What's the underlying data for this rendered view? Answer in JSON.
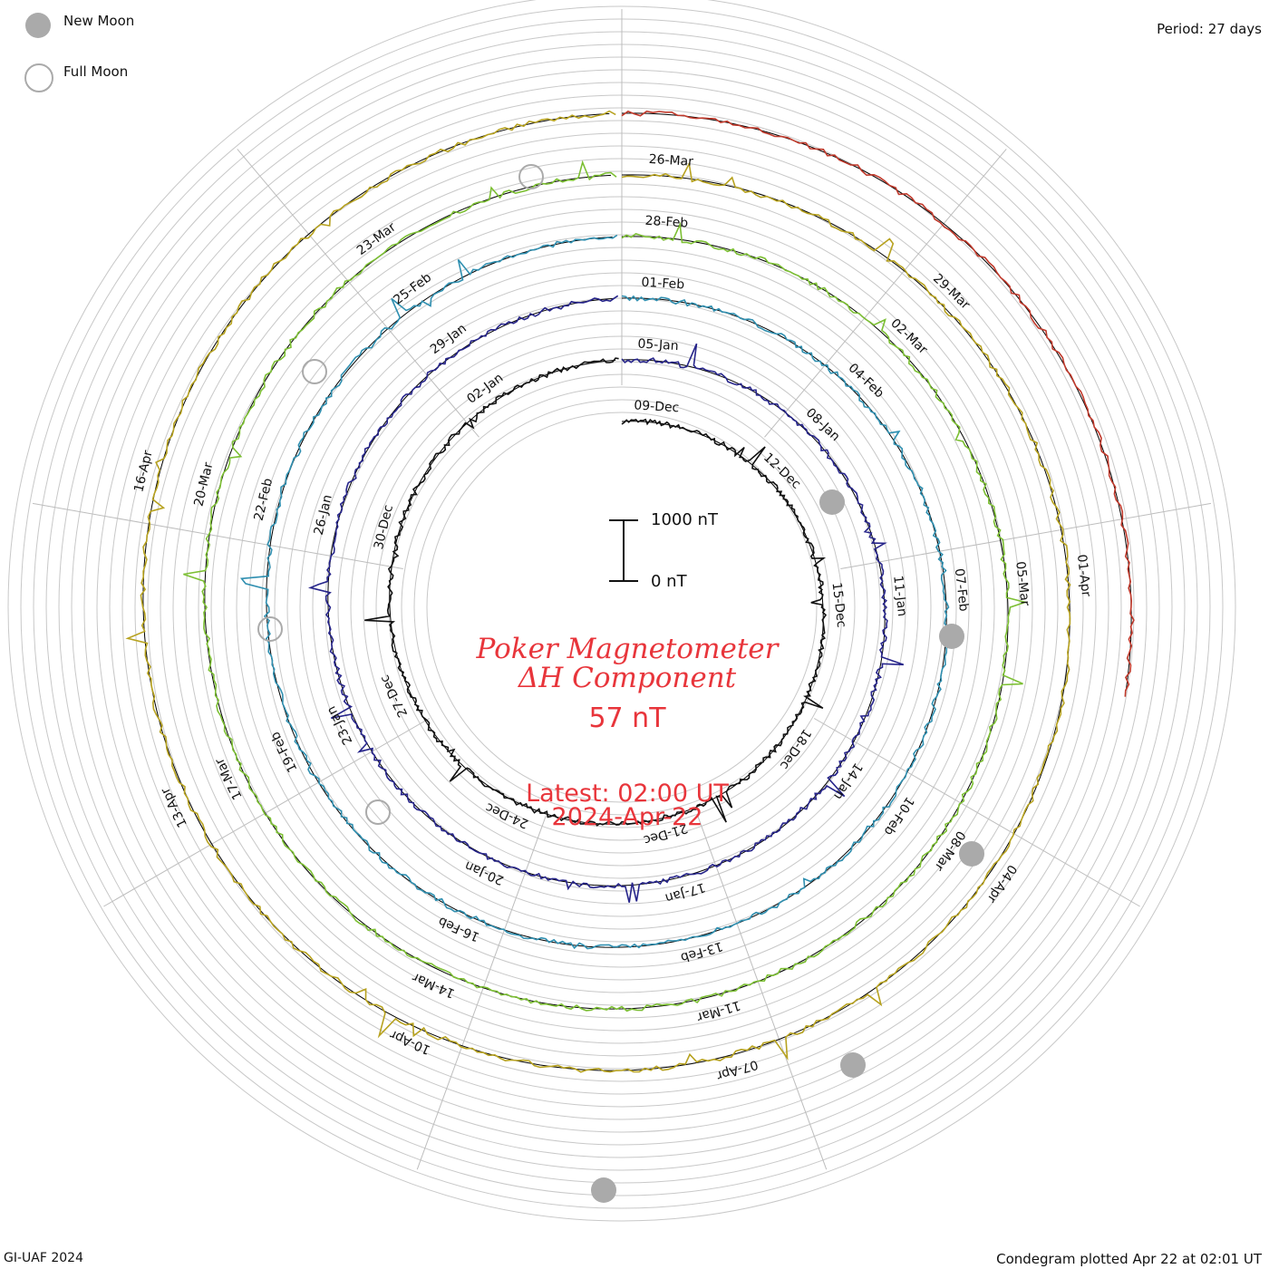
{
  "header": {
    "period_label": "Period: 27 days"
  },
  "legend": {
    "new_moon_label": "New Moon",
    "full_moon_label": "Full Moon",
    "new_moon_color": "#aaaaaa",
    "full_moon_color": "#aaaaaa"
  },
  "scale": {
    "top_label": "1000 nT",
    "bottom_label": "0 nT"
  },
  "center": {
    "title_line1": "Poker Magnetometer",
    "title_line2": "ΔH Component",
    "current_value": "57 nT",
    "latest_line1": "Latest: 02:00 UT",
    "latest_line2": "2024-Apr-22"
  },
  "footer": {
    "left": "GI-UAF 2024",
    "right": "Condegram plotted Apr 22 at 02:01 UT"
  },
  "chart_data": {
    "type": "line",
    "title": "Poker Magnetometer ΔH Component",
    "period_days": 27,
    "units": "nT",
    "scale_bar": [
      0,
      1000
    ],
    "series": [
      {
        "color": "#111111",
        "date_labels": [
          "09-Dec",
          "12-Dec",
          "15-Dec",
          "18-Dec",
          "21-Dec",
          "24-Dec",
          "27-Dec",
          "30-Dec",
          "02-Jan"
        ]
      },
      {
        "color": "#26248a",
        "date_labels": [
          "05-Jan",
          "08-Jan",
          "11-Jan",
          "14-Jan",
          "17-Jan",
          "20-Jan",
          "23-Jan",
          "26-Jan",
          "29-Jan"
        ]
      },
      {
        "color": "#2f8fb0",
        "date_labels": [
          "01-Feb",
          "04-Feb",
          "07-Feb",
          "10-Feb",
          "13-Feb",
          "16-Feb",
          "19-Feb",
          "22-Feb",
          "25-Feb"
        ]
      },
      {
        "color": "#7cbf33",
        "date_labels": [
          "28-Feb",
          "02-Mar",
          "05-Mar",
          "08-Mar",
          "11-Mar",
          "14-Mar",
          "17-Mar",
          "20-Mar",
          "23-Mar"
        ]
      },
      {
        "color": "#b7a21f",
        "date_labels": [
          "26-Mar",
          "29-Mar",
          "01-Apr",
          "04-Apr",
          "07-Apr",
          "10-Apr",
          "13-Apr",
          "16-Apr"
        ]
      },
      {
        "color": "#c0392b",
        "date_labels": []
      }
    ],
    "new_moon_dates": [
      "12-Dec",
      "11-Jan",
      "09-Feb",
      "10-Mar",
      "08-Apr"
    ],
    "full_moon_dates": [
      "27-Dec",
      "25-Jan",
      "24-Feb",
      "25-Mar"
    ]
  }
}
